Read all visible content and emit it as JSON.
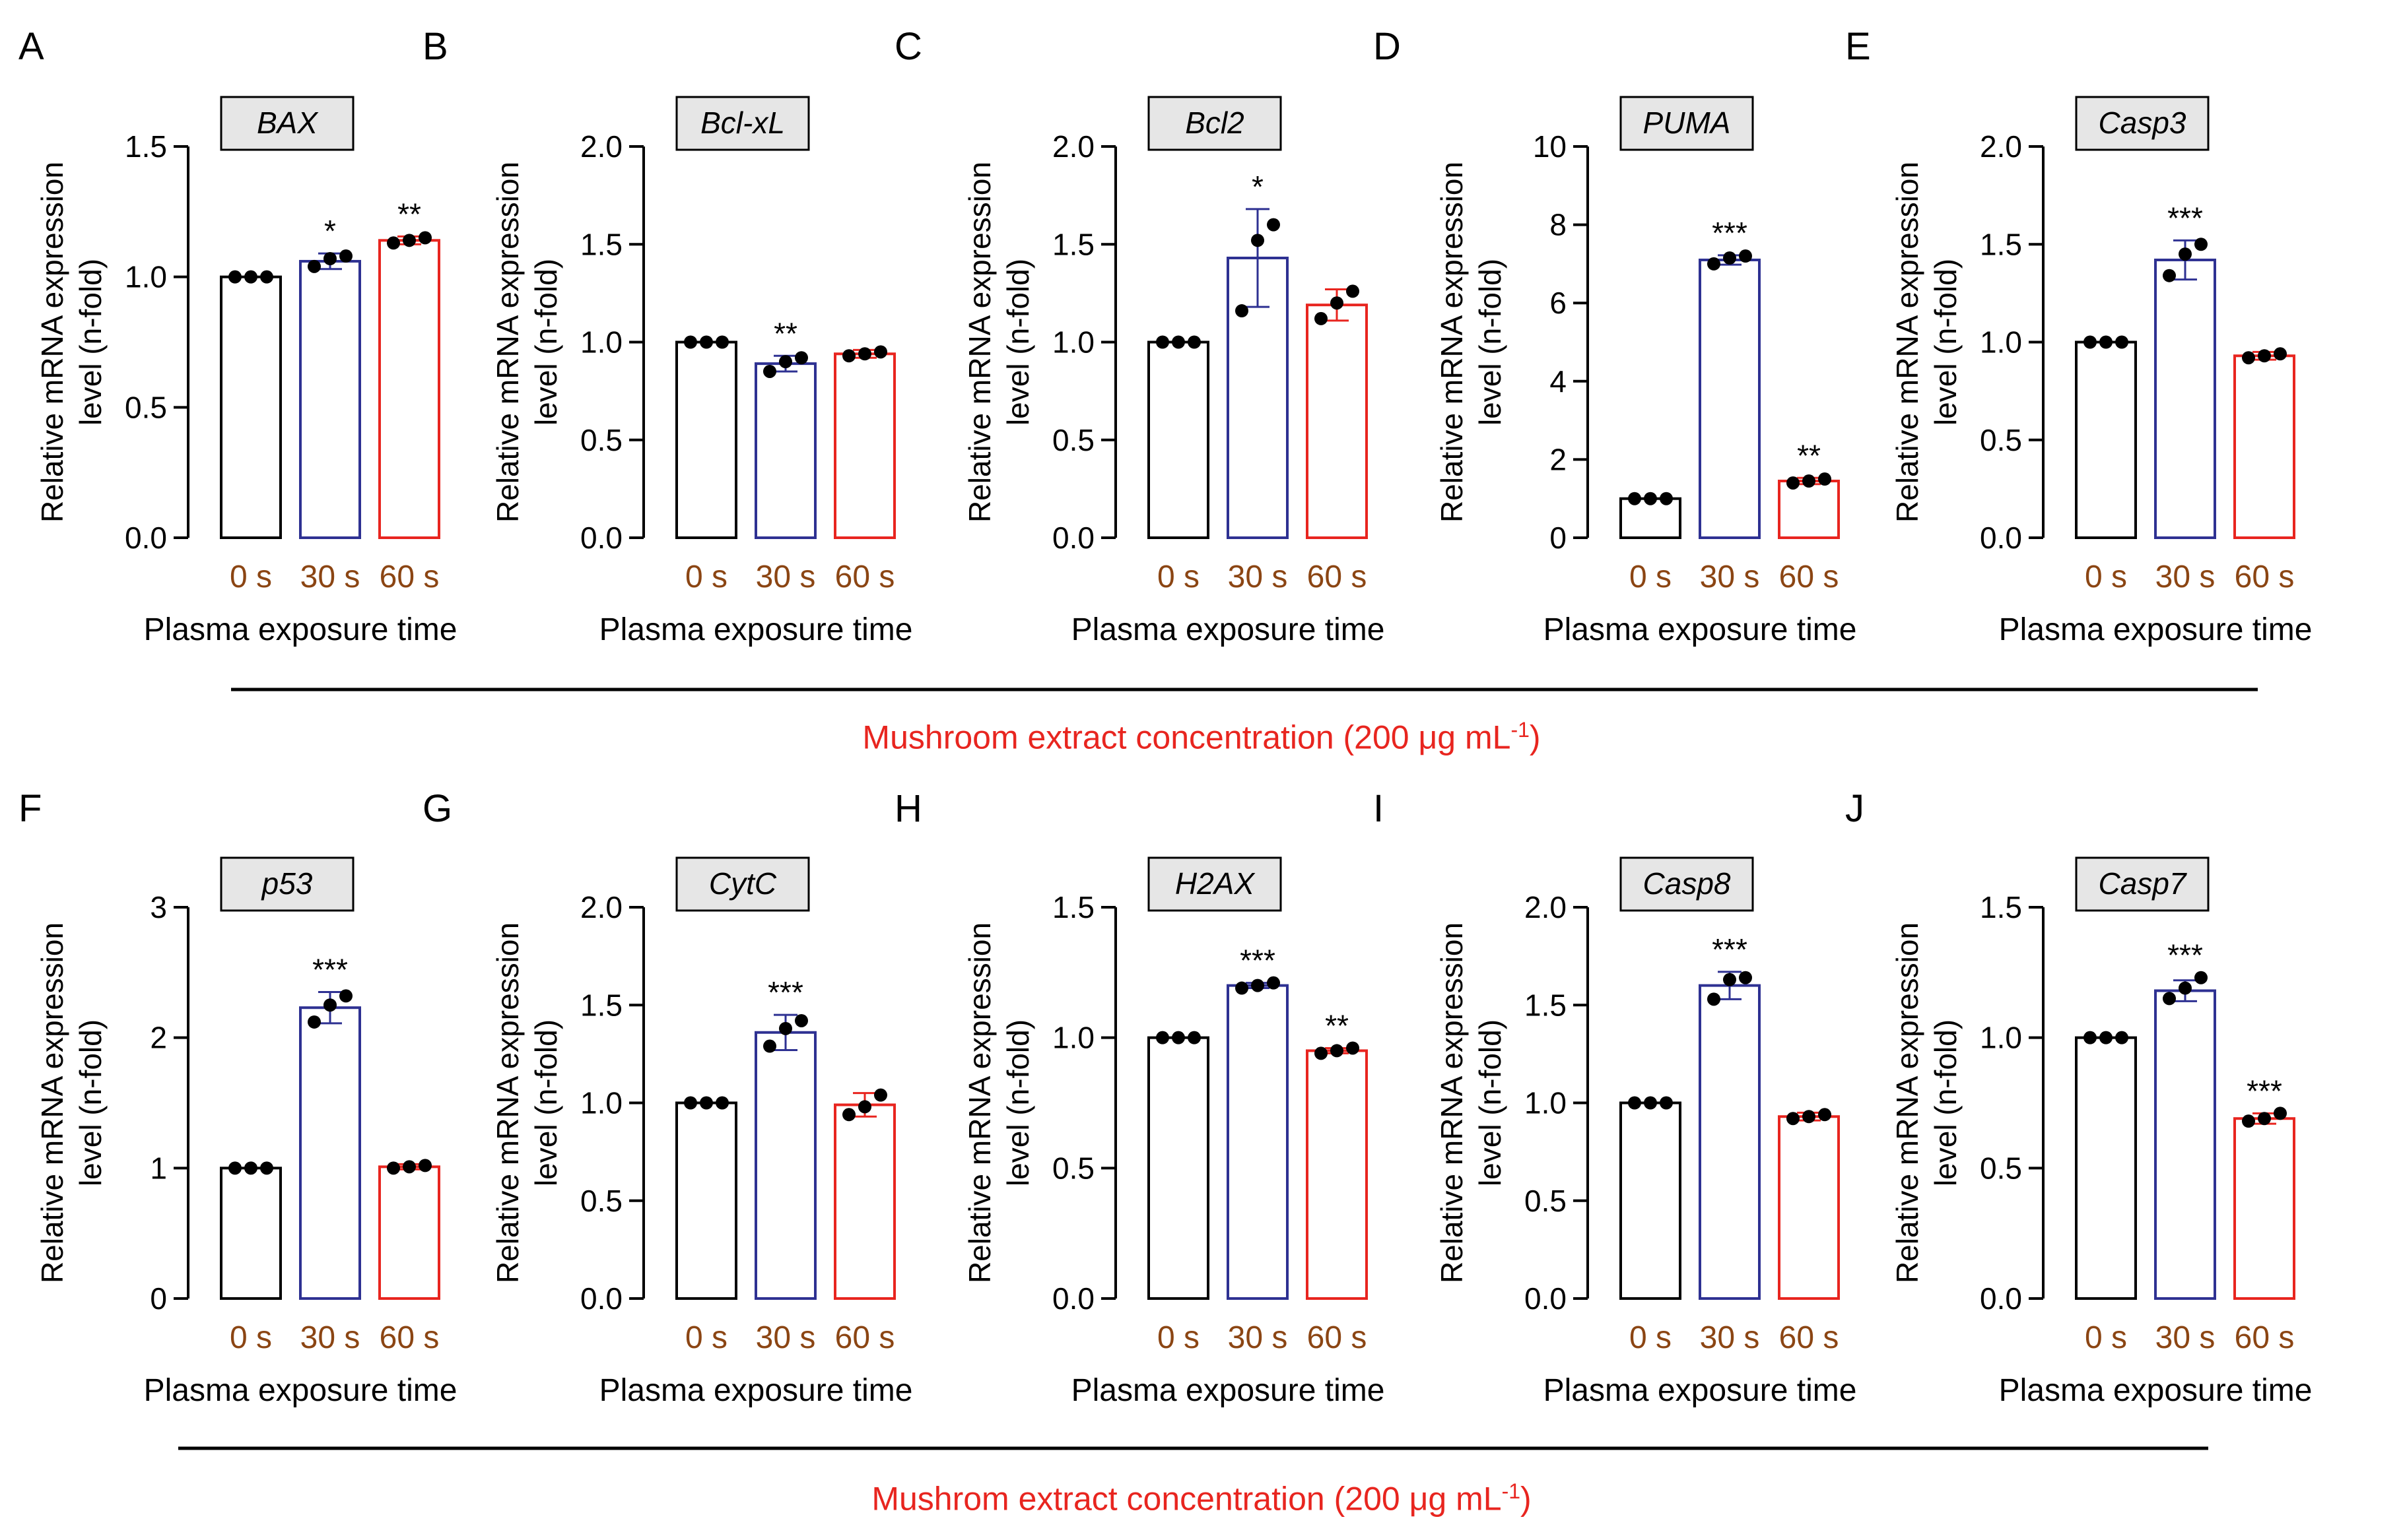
{
  "caption_top": "Mushroom extract concentration (200 μg mL",
  "caption_bottom": "Mushrom extract concentration (200 μg mL",
  "caption_superscript": "-1",
  "colors": {
    "bar_0s": "#000000",
    "bar_30s": "#2e3192",
    "bar_60s": "#e8251f",
    "tick_label": "#8b4513",
    "caption": "#e8251f",
    "gene_box": "#e6e6e6"
  },
  "chart_data": [
    {
      "type": "bar",
      "panel_label": "A",
      "gene": "BAX",
      "ylabel": "Relative mRNA expression\nlevel (n-fold)",
      "xlabel": "Plasma exposure time",
      "categories": [
        "0 s",
        "30 s",
        "60 s"
      ],
      "values": [
        1.0,
        1.06,
        1.14
      ],
      "errors": [
        0.0,
        0.03,
        0.015
      ],
      "points": [
        [
          1.0,
          1.0,
          1.0
        ],
        [
          1.04,
          1.07,
          1.08
        ],
        [
          1.13,
          1.14,
          1.15
        ]
      ],
      "significance": [
        "",
        "*",
        "**"
      ],
      "ylim": [
        0,
        1.5
      ],
      "yticks": [
        "0.0",
        "0.5",
        "1.0",
        "1.5"
      ]
    },
    {
      "type": "bar",
      "panel_label": "B",
      "gene": "Bcl-xL",
      "ylabel": "Relative mRNA expression\nlevel (n-fold)",
      "xlabel": "Plasma exposure time",
      "categories": [
        "0 s",
        "30 s",
        "60 s"
      ],
      "values": [
        1.0,
        0.89,
        0.94
      ],
      "errors": [
        0.0,
        0.04,
        0.02
      ],
      "points": [
        [
          1.0,
          1.0,
          1.0
        ],
        [
          0.85,
          0.9,
          0.92
        ],
        [
          0.93,
          0.94,
          0.95
        ]
      ],
      "significance": [
        "",
        "**",
        ""
      ],
      "ylim": [
        0,
        2.0
      ],
      "yticks": [
        "0.0",
        "0.5",
        "1.0",
        "1.5",
        "2.0"
      ]
    },
    {
      "type": "bar",
      "panel_label": "C",
      "gene": "Bcl2",
      "ylabel": "Relative mRNA expression\nlevel (n-fold)",
      "xlabel": "Plasma exposure time",
      "categories": [
        "0 s",
        "30 s",
        "60 s"
      ],
      "values": [
        1.0,
        1.43,
        1.19
      ],
      "errors": [
        0.0,
        0.25,
        0.08
      ],
      "points": [
        [
          1.0,
          1.0,
          1.0
        ],
        [
          1.16,
          1.52,
          1.6
        ],
        [
          1.12,
          1.2,
          1.26
        ]
      ],
      "significance": [
        "",
        "*",
        ""
      ],
      "ylim": [
        0,
        2.0
      ],
      "yticks": [
        "0.0",
        "0.5",
        "1.0",
        "1.5",
        "2.0"
      ]
    },
    {
      "type": "bar",
      "panel_label": "D",
      "gene": "PUMA",
      "ylabel": "Relative mRNA expression\nlevel (n-fold)",
      "xlabel": "Plasma exposure time",
      "categories": [
        "0 s",
        "30 s",
        "60 s"
      ],
      "values": [
        1.0,
        7.1,
        1.45
      ],
      "errors": [
        0.0,
        0.12,
        0.08
      ],
      "points": [
        [
          1.0,
          1.0,
          1.0
        ],
        [
          7.0,
          7.15,
          7.2
        ],
        [
          1.4,
          1.45,
          1.5
        ]
      ],
      "significance": [
        "",
        "***",
        "**"
      ],
      "ylim": [
        0,
        10
      ],
      "yticks": [
        "0",
        "2",
        "4",
        "6",
        "8",
        "10"
      ]
    },
    {
      "type": "bar",
      "panel_label": "E",
      "gene": "Casp3",
      "ylabel": "Relative mRNA expression\nlevel (n-fold)",
      "xlabel": "Plasma exposure time",
      "categories": [
        "0 s",
        "30 s",
        "60 s"
      ],
      "values": [
        1.0,
        1.42,
        0.93
      ],
      "errors": [
        0.0,
        0.1,
        0.02
      ],
      "points": [
        [
          1.0,
          1.0,
          1.0
        ],
        [
          1.34,
          1.45,
          1.5
        ],
        [
          0.92,
          0.93,
          0.94
        ]
      ],
      "significance": [
        "",
        "***",
        ""
      ],
      "ylim": [
        0,
        2.0
      ],
      "yticks": [
        "0.0",
        "0.5",
        "1.0",
        "1.5",
        "2.0"
      ]
    },
    {
      "type": "bar",
      "panel_label": "F",
      "gene": "p53",
      "ylabel": "Relative mRNA expression\nlevel (n-fold)",
      "xlabel": "Plasma exposure time",
      "categories": [
        "0 s",
        "30 s",
        "60 s"
      ],
      "values": [
        1.0,
        2.23,
        1.01
      ],
      "errors": [
        0.0,
        0.12,
        0.02
      ],
      "points": [
        [
          1.0,
          1.0,
          1.0
        ],
        [
          2.12,
          2.25,
          2.32
        ],
        [
          1.0,
          1.01,
          1.02
        ]
      ],
      "significance": [
        "",
        "***",
        ""
      ],
      "ylim": [
        0,
        3
      ],
      "yticks": [
        "0",
        "1",
        "2",
        "3"
      ]
    },
    {
      "type": "bar",
      "panel_label": "G",
      "gene": "CytC",
      "ylabel": "Relative mRNA expression\nlevel (n-fold)",
      "xlabel": "Plasma exposure time",
      "categories": [
        "0 s",
        "30 s",
        "60 s"
      ],
      "values": [
        1.0,
        1.36,
        0.99
      ],
      "errors": [
        0.0,
        0.09,
        0.06
      ],
      "points": [
        [
          1.0,
          1.0,
          1.0
        ],
        [
          1.29,
          1.38,
          1.42
        ],
        [
          0.94,
          0.98,
          1.04
        ]
      ],
      "significance": [
        "",
        "***",
        ""
      ],
      "ylim": [
        0,
        2.0
      ],
      "yticks": [
        "0.0",
        "0.5",
        "1.0",
        "1.5",
        "2.0"
      ]
    },
    {
      "type": "bar",
      "panel_label": "H",
      "gene": "H2AX",
      "ylabel": "Relative mRNA expression\nlevel (n-fold)",
      "xlabel": "Plasma exposure time",
      "categories": [
        "0 s",
        "30 s",
        "60 s"
      ],
      "values": [
        1.0,
        1.2,
        0.95
      ],
      "errors": [
        0.0,
        0.01,
        0.01
      ],
      "points": [
        [
          1.0,
          1.0,
          1.0
        ],
        [
          1.19,
          1.2,
          1.21
        ],
        [
          0.94,
          0.95,
          0.96
        ]
      ],
      "significance": [
        "",
        "***",
        "**"
      ],
      "ylim": [
        0,
        1.5
      ],
      "yticks": [
        "0.0",
        "0.5",
        "1.0",
        "1.5"
      ]
    },
    {
      "type": "bar",
      "panel_label": "I",
      "gene": "Casp8",
      "ylabel": "Relative mRNA expression\nlevel (n-fold)",
      "xlabel": "Plasma exposure time",
      "categories": [
        "0 s",
        "30 s",
        "60 s"
      ],
      "values": [
        1.0,
        1.6,
        0.93
      ],
      "errors": [
        0.0,
        0.07,
        0.02
      ],
      "points": [
        [
          1.0,
          1.0,
          1.0
        ],
        [
          1.53,
          1.63,
          1.64
        ],
        [
          0.92,
          0.93,
          0.94
        ]
      ],
      "significance": [
        "",
        "***",
        ""
      ],
      "ylim": [
        0,
        2.0
      ],
      "yticks": [
        "0.0",
        "0.5",
        "1.0",
        "1.5",
        "2.0"
      ]
    },
    {
      "type": "bar",
      "panel_label": "J",
      "gene": "Casp7",
      "ylabel": "Relative mRNA expression\nlevel (n-fold)",
      "xlabel": "Plasma exposure time",
      "categories": [
        "0 s",
        "30 s",
        "60 s"
      ],
      "values": [
        1.0,
        1.18,
        0.69
      ],
      "errors": [
        0.0,
        0.04,
        0.02
      ],
      "points": [
        [
          1.0,
          1.0,
          1.0
        ],
        [
          1.15,
          1.19,
          1.23
        ],
        [
          0.68,
          0.69,
          0.71
        ]
      ],
      "significance": [
        "",
        "***",
        "***"
      ],
      "ylim": [
        0,
        1.5
      ],
      "yticks": [
        "0.0",
        "0.5",
        "1.0",
        "1.5"
      ]
    }
  ]
}
